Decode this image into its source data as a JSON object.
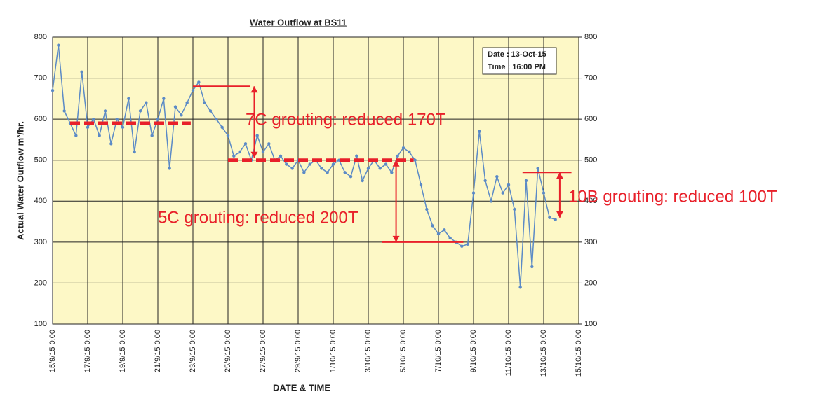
{
  "chart_data": {
    "type": "line",
    "title": "Water Outflow at BS11",
    "xlabel": "DATE & TIME",
    "ylabel": "Actual Water Outflow m³/hr.",
    "info_box": [
      "Date : 13-Oct-15",
      "Time : 16:00 PM"
    ],
    "series": [
      {
        "color": "#5b8ac6",
        "x": [
          "2015-09-15 00:00",
          "2015-09-15 08:00",
          "2015-09-15 16:00",
          "2015-09-16 00:00",
          "2015-09-16 08:00",
          "2015-09-16 16:00",
          "2015-09-17 00:00",
          "2015-09-17 08:00",
          "2015-09-17 16:00",
          "2015-09-18 00:00",
          "2015-09-18 08:00",
          "2015-09-18 16:00",
          "2015-09-19 00:00",
          "2015-09-19 08:00",
          "2015-09-19 16:00",
          "2015-09-20 00:00",
          "2015-09-20 08:00",
          "2015-09-20 16:00",
          "2015-09-21 00:00",
          "2015-09-21 08:00",
          "2015-09-21 16:00",
          "2015-09-22 00:00",
          "2015-09-22 08:00",
          "2015-09-22 16:00",
          "2015-09-23 00:00",
          "2015-09-23 08:00",
          "2015-09-23 16:00",
          "2015-09-24 00:00",
          "2015-09-24 08:00",
          "2015-09-24 16:00",
          "2015-09-25 00:00",
          "2015-09-25 08:00",
          "2015-09-25 16:00",
          "2015-09-26 00:00",
          "2015-09-26 08:00",
          "2015-09-26 16:00",
          "2015-09-27 00:00",
          "2015-09-27 08:00",
          "2015-09-27 16:00",
          "2015-09-28 00:00",
          "2015-09-28 08:00",
          "2015-09-28 16:00",
          "2015-09-29 00:00",
          "2015-09-29 08:00",
          "2015-09-29 16:00",
          "2015-09-30 00:00",
          "2015-09-30 08:00",
          "2015-09-30 16:00",
          "2015-10-01 00:00",
          "2015-10-01 08:00",
          "2015-10-01 16:00",
          "2015-10-02 00:00",
          "2015-10-02 08:00",
          "2015-10-02 16:00",
          "2015-10-03 00:00",
          "2015-10-03 08:00",
          "2015-10-03 16:00",
          "2015-10-04 00:00",
          "2015-10-04 08:00",
          "2015-10-04 16:00",
          "2015-10-05 00:00",
          "2015-10-05 08:00",
          "2015-10-05 16:00",
          "2015-10-06 00:00",
          "2015-10-06 08:00",
          "2015-10-06 16:00",
          "2015-10-07 00:00",
          "2015-10-07 08:00",
          "2015-10-07 16:00",
          "2015-10-08 00:00",
          "2015-10-08 08:00",
          "2015-10-08 16:00",
          "2015-10-09 00:00",
          "2015-10-09 08:00",
          "2015-10-09 16:00",
          "2015-10-10 00:00",
          "2015-10-10 08:00",
          "2015-10-10 16:00",
          "2015-10-11 00:00",
          "2015-10-11 08:00",
          "2015-10-11 16:00",
          "2015-10-12 00:00",
          "2015-10-12 08:00",
          "2015-10-12 16:00",
          "2015-10-13 00:00",
          "2015-10-13 08:00",
          "2015-10-13 16:00"
        ],
        "values": [
          670,
          780,
          620,
          590,
          560,
          715,
          580,
          600,
          560,
          620,
          540,
          600,
          580,
          650,
          520,
          620,
          640,
          560,
          600,
          650,
          480,
          630,
          610,
          640,
          670,
          690,
          640,
          620,
          600,
          580,
          560,
          510,
          520,
          540,
          500,
          560,
          520,
          540,
          500,
          510,
          490,
          480,
          500,
          470,
          490,
          500,
          480,
          470,
          490,
          500,
          470,
          460,
          510,
          450,
          480,
          500,
          480,
          490,
          470,
          510,
          530,
          520,
          500,
          440,
          380,
          340,
          320,
          330,
          310,
          300,
          290,
          295,
          420,
          570,
          450,
          400,
          460,
          420,
          440,
          380,
          190,
          450,
          240,
          480,
          420,
          360,
          355
        ]
      }
    ],
    "xlim": [
      "2015-09-15 00:00",
      "2015-10-15 00:00"
    ],
    "xticks": [
      {
        "value": "2015-09-15 00:00",
        "label": "15/9/15 0:00"
      },
      {
        "value": "2015-09-17 00:00",
        "label": "17/9/15 0:00"
      },
      {
        "value": "2015-09-19 00:00",
        "label": "19/9/15 0:00"
      },
      {
        "value": "2015-09-21 00:00",
        "label": "21/9/15 0:00"
      },
      {
        "value": "2015-09-23 00:00",
        "label": "23/9/15 0:00"
      },
      {
        "value": "2015-09-25 00:00",
        "label": "25/9/15 0:00"
      },
      {
        "value": "2015-09-27 00:00",
        "label": "27/9/15 0:00"
      },
      {
        "value": "2015-09-29 00:00",
        "label": "29/9/15 0:00"
      },
      {
        "value": "2015-10-01 00:00",
        "label": "1/10/15 0:00"
      },
      {
        "value": "2015-10-03 00:00",
        "label": "3/10/15 0:00"
      },
      {
        "value": "2015-10-05 00:00",
        "label": "5/10/15 0:00"
      },
      {
        "value": "2015-10-07 00:00",
        "label": "7/10/15 0:00"
      },
      {
        "value": "2015-10-09 00:00",
        "label": "9/10/15 0:00"
      },
      {
        "value": "2015-10-11 00:00",
        "label": "11/10/15 0:00"
      },
      {
        "value": "2015-10-13 00:00",
        "label": "13/10/15 0:00"
      },
      {
        "value": "2015-10-15 00:00",
        "label": "15/10/15 0:00"
      }
    ],
    "ylim": [
      100,
      800
    ],
    "yticks": [
      100,
      200,
      300,
      400,
      500,
      600,
      700,
      800
    ],
    "y2lim": [
      100,
      800
    ],
    "y2ticks": [
      100,
      200,
      300,
      400,
      500,
      600,
      700,
      800
    ],
    "grid": true,
    "reference_lines": [
      {
        "y": 590,
        "x": [
          "2015-09-16 00:00",
          "2015-09-22 21:00"
        ],
        "style": "dashed",
        "color": "#e8202a"
      },
      {
        "y": 500,
        "x": [
          "2015-09-25 00:00",
          "2015-10-05 14:00"
        ],
        "style": "dashed",
        "color": "#e8202a"
      },
      {
        "y": 680,
        "x": [
          "2015-09-23 00:00",
          "2015-09-26 06:00"
        ],
        "style": "solid",
        "color": "#e8202a"
      },
      {
        "y": 300,
        "x": [
          "2015-10-03 19:00",
          "2015-10-08 10:00"
        ],
        "style": "solid",
        "color": "#e8202a"
      },
      {
        "y": 470,
        "x": [
          "2015-10-11 19:00",
          "2015-10-14 14:00"
        ],
        "style": "solid",
        "color": "#e8202a"
      }
    ],
    "annotations": [
      {
        "text": "7C grouting: reduced 170T",
        "x": "2015-09-26 12:00",
        "y": [
          680,
          505
        ]
      },
      {
        "text": "5C grouting: reduced 200T",
        "x": "2015-10-04 14:00",
        "y": [
          500,
          300
        ]
      },
      {
        "text": "10B grouting: reduced 100T",
        "x": "2015-10-13 22:00",
        "y": [
          470,
          360
        ]
      }
    ]
  }
}
